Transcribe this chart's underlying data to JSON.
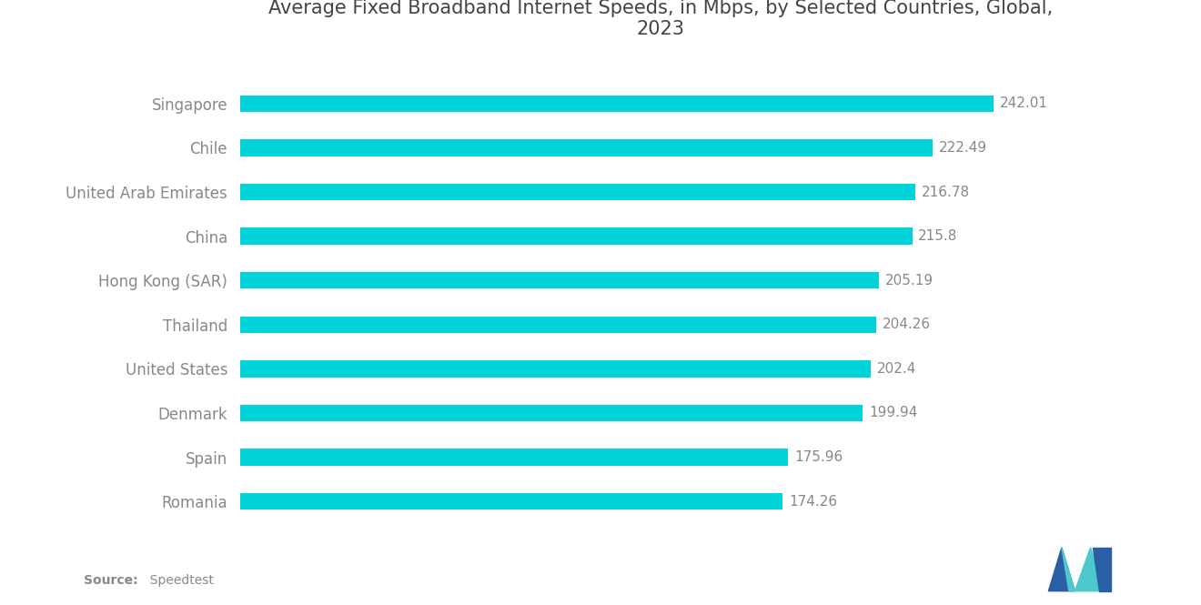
{
  "title": "Average Fixed Broadband Internet Speeds, in Mbps, by Selected Countries, Global,\n2023",
  "countries": [
    "Romania",
    "Spain",
    "Denmark",
    "United States",
    "Thailand",
    "Hong Kong (SAR)",
    "China",
    "United Arab Emirates",
    "Chile",
    "Singapore"
  ],
  "values": [
    174.26,
    175.96,
    199.94,
    202.4,
    204.26,
    205.19,
    215.8,
    216.78,
    222.49,
    242.01
  ],
  "bar_color": "#00D4D8",
  "label_color": "#888888",
  "title_color": "#444444",
  "source_bold": "Source:",
  "source_rest": "  Speedtest",
  "background_color": "#ffffff",
  "value_labels": [
    "174.26",
    "175.96",
    "199.94",
    "202.4",
    "204.26",
    "205.19",
    "215.8",
    "216.78",
    "222.49",
    "242.01"
  ],
  "xlim": [
    0,
    270
  ],
  "title_fontsize": 15,
  "label_fontsize": 12,
  "value_fontsize": 11,
  "bar_height": 0.38
}
